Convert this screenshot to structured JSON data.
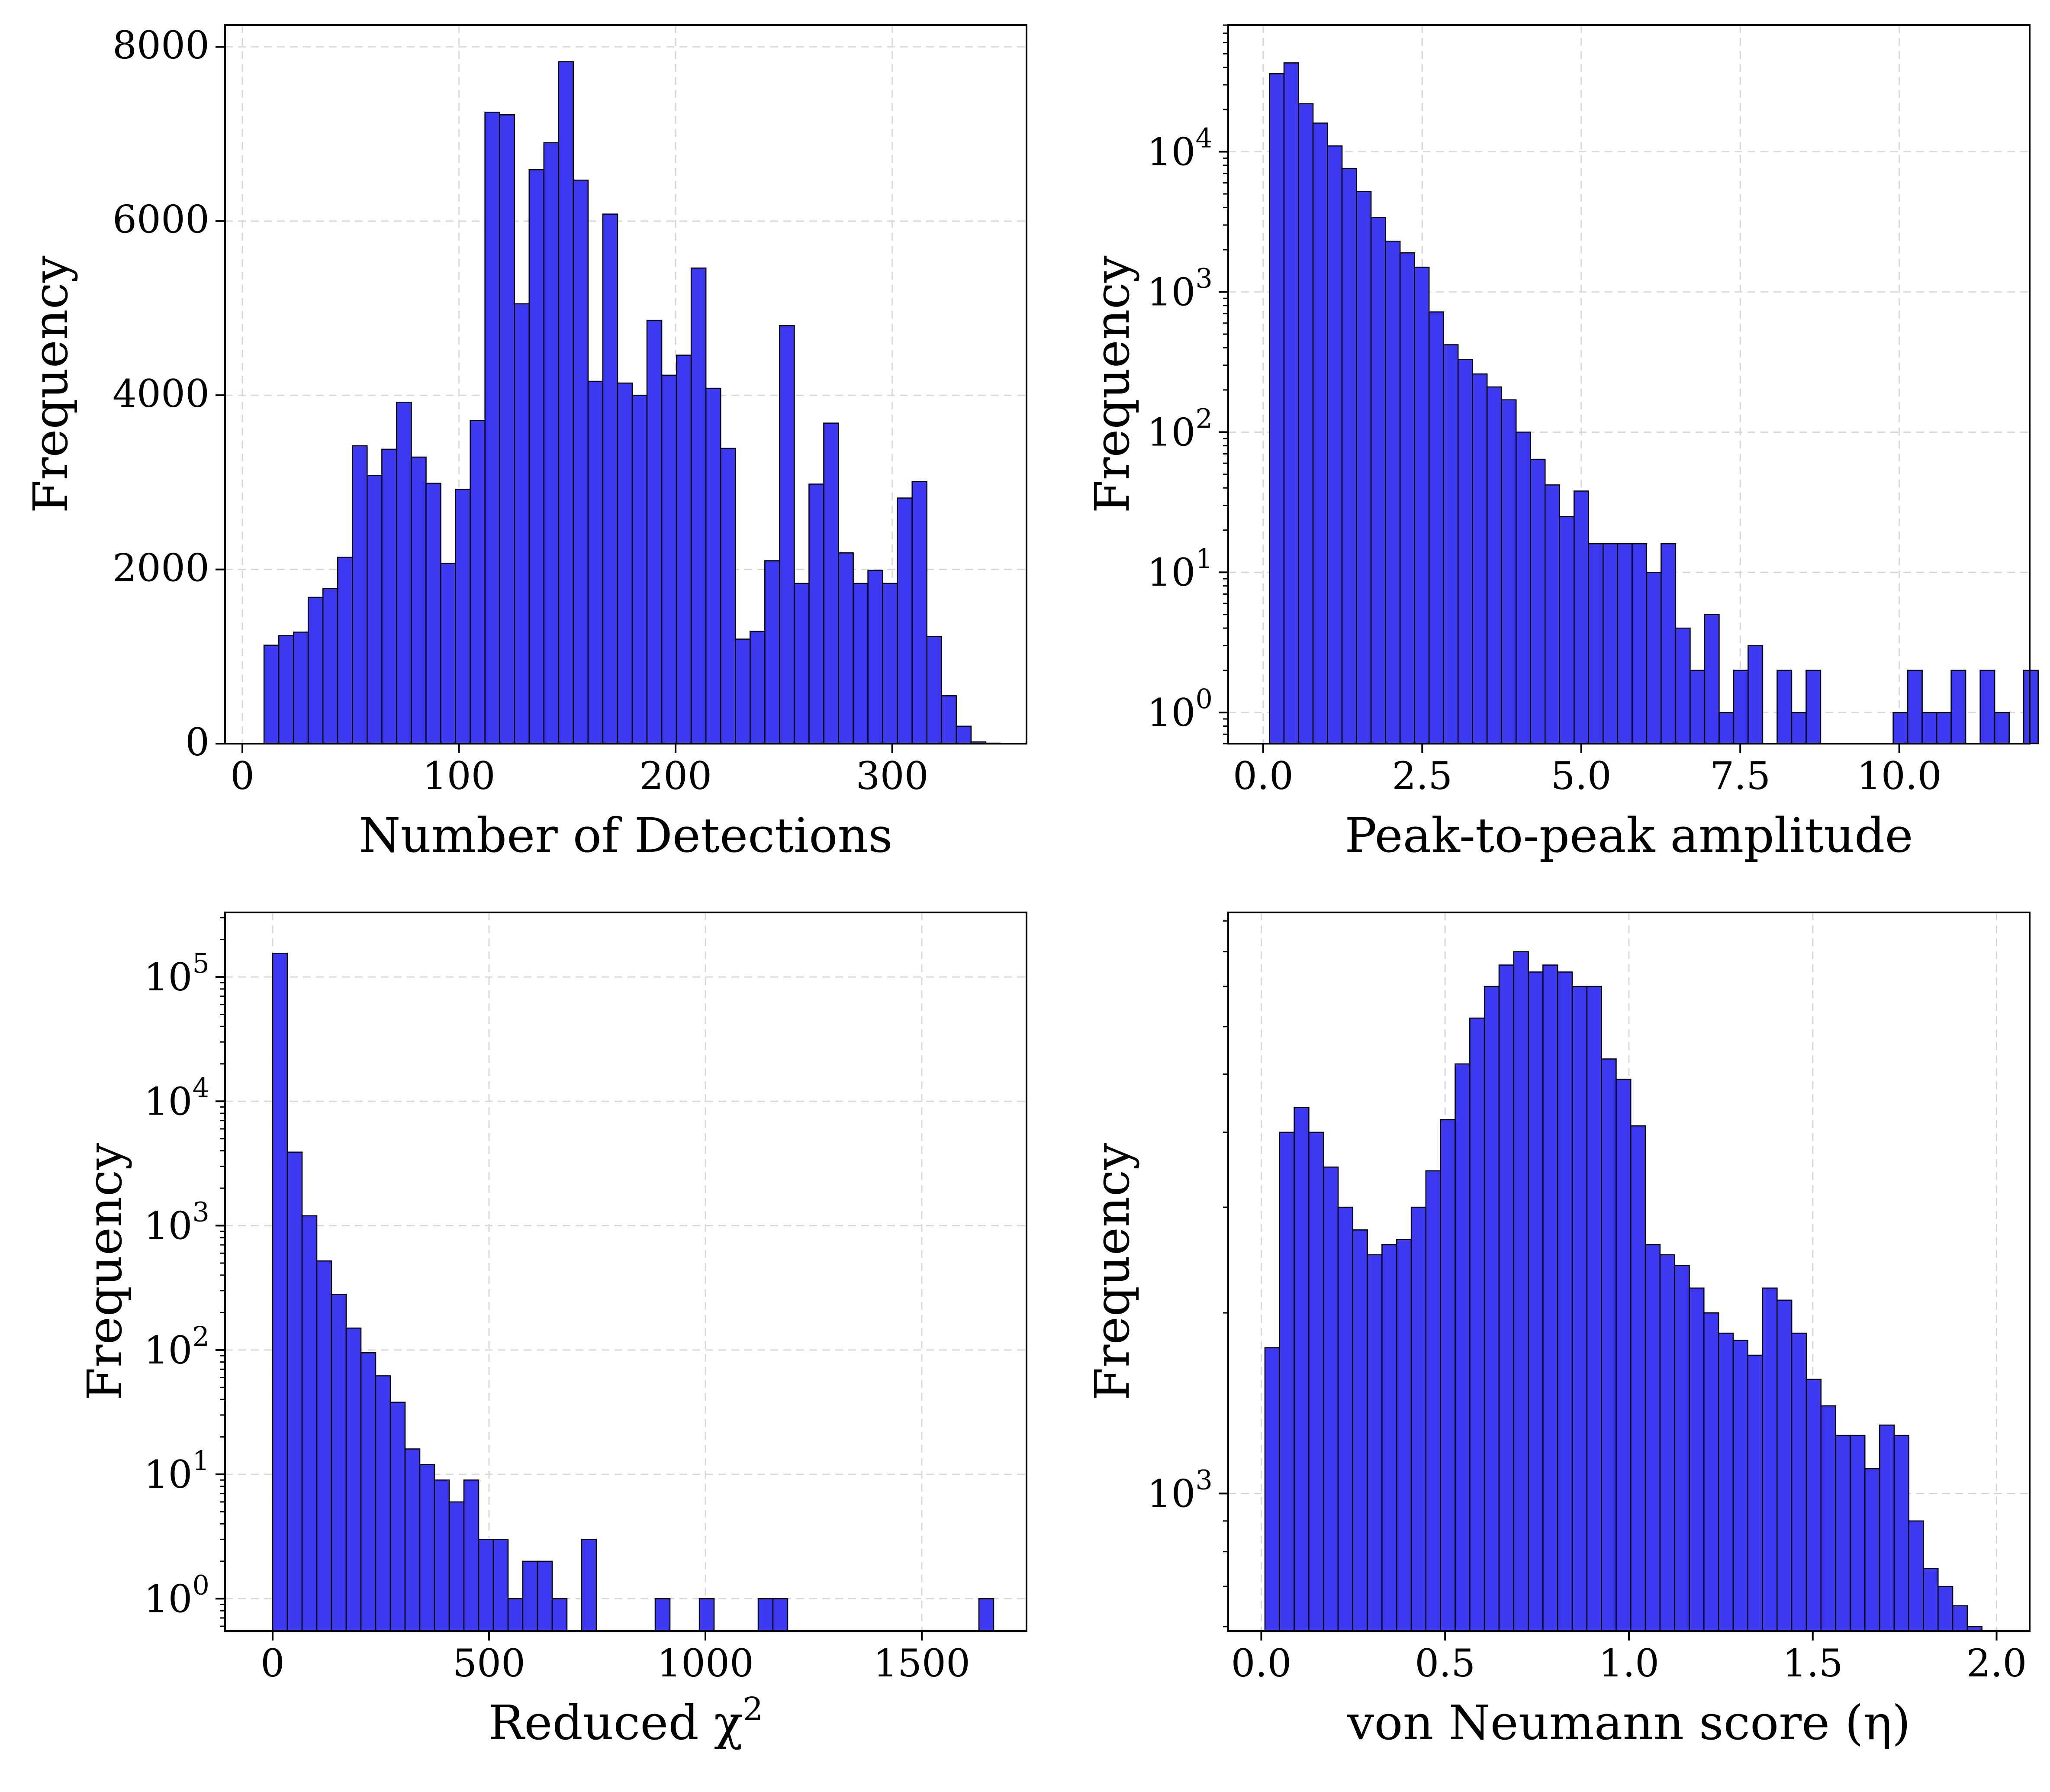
{
  "colors": {
    "bar": "#3c39f0",
    "edge": "#000000",
    "grid": "#d8d8d8"
  },
  "chart_data": [
    {
      "type": "bar",
      "scale": "linear",
      "xlabel": "Number of Detections",
      "ylabel": "Frequency",
      "xlim": [
        -8,
        362
      ],
      "ylim": [
        0,
        8250
      ],
      "bin_start": 10,
      "bin_width": 6.8,
      "values": [
        1130,
        1240,
        1280,
        1680,
        1780,
        2140,
        3420,
        3080,
        3380,
        3920,
        3290,
        2990,
        2070,
        2920,
        3710,
        7250,
        7220,
        5050,
        6590,
        6900,
        7830,
        6470,
        4160,
        6080,
        4140,
        4000,
        4860,
        4230,
        4460,
        5460,
        4080,
        3390,
        1200,
        1290,
        2100,
        4800,
        1840,
        2980,
        3680,
        2190,
        1840,
        1990,
        1840,
        2820,
        3010,
        1230,
        550,
        200,
        20,
        5
      ],
      "xticks": [
        0,
        100,
        200,
        300
      ],
      "xtick_labels": [
        "0",
        "100",
        "200",
        "300"
      ],
      "yticks": [
        0,
        2000,
        4000,
        6000,
        8000
      ],
      "ytick_labels": [
        "0",
        "2000",
        "4000",
        "6000",
        "8000"
      ]
    },
    {
      "type": "bar",
      "scale": "log",
      "xlabel": "Peak-to-peak amplitude",
      "ylabel": "Frequency",
      "xlim": [
        -0.55,
        12.05
      ],
      "ylim": [
        0.6,
        80000
      ],
      "bin_start": 0.1,
      "bin_width": 0.228,
      "values": [
        36000,
        43000,
        22000,
        16000,
        11000,
        7600,
        5200,
        3400,
        2300,
        1900,
        1500,
        720,
        420,
        330,
        260,
        210,
        170,
        100,
        64,
        42,
        25,
        38,
        16,
        16,
        16,
        16,
        10,
        16,
        4,
        2,
        5,
        1,
        2,
        3,
        0,
        2,
        1,
        2,
        0,
        0,
        0,
        0,
        0,
        1,
        2,
        1,
        1,
        2,
        0,
        2,
        1,
        0,
        2
      ],
      "xticks": [
        0,
        2.5,
        5,
        7.5,
        10
      ],
      "xtick_labels": [
        "0.0",
        "2.5",
        "5.0",
        "7.5",
        "10.0"
      ],
      "yticks": [
        1,
        10,
        100,
        1000,
        10000
      ],
      "ytick_labels": [
        "10^0",
        "10^1",
        "10^2",
        "10^3",
        "10^4"
      ]
    },
    {
      "type": "bar",
      "scale": "log",
      "xlabel": "Reduced χ^2",
      "ylabel": "Frequency",
      "xlim": [
        -110,
        1742
      ],
      "ylim": [
        0.55,
        330000
      ],
      "bin_start": 0,
      "bin_width": 34,
      "values": [
        155000,
        3900,
        1200,
        520,
        280,
        150,
        95,
        62,
        38,
        16,
        12,
        9,
        6,
        9,
        3,
        3,
        1,
        2,
        2,
        1,
        0,
        3,
        0,
        0,
        0,
        0,
        1,
        0,
        0,
        1,
        0,
        0,
        0,
        1,
        1,
        0,
        0,
        0,
        0,
        0,
        0,
        0,
        0,
        0,
        0,
        0,
        0,
        0,
        1
      ],
      "xticks": [
        0,
        500,
        1000,
        1500
      ],
      "xtick_labels": [
        "0",
        "500",
        "1000",
        "1500"
      ],
      "yticks": [
        1,
        10,
        100,
        1000,
        10000,
        100000
      ],
      "ytick_labels": [
        "10^0",
        "10^1",
        "10^2",
        "10^3",
        "10^4",
        "10^5"
      ]
    },
    {
      "type": "bar",
      "scale": "log",
      "xlabel": "von Neumann score (η)",
      "ylabel": "Frequency",
      "xlim": [
        -0.09,
        2.09
      ],
      "ylim": [
        590,
        9300
      ],
      "bin_start": 0.01,
      "bin_width": 0.0398,
      "values": [
        1750,
        4000,
        4400,
        4000,
        3500,
        3000,
        2750,
        2500,
        2600,
        2650,
        3000,
        3450,
        4200,
        5200,
        6200,
        7000,
        7600,
        8000,
        7400,
        7600,
        7400,
        7000,
        7000,
        5300,
        4900,
        4100,
        2600,
        2500,
        2400,
        2200,
        2000,
        1850,
        1800,
        1700,
        2200,
        2100,
        1850,
        1550,
        1400,
        1250,
        1250,
        1100,
        1300,
        1250,
        900,
        750,
        700,
        650,
        600,
        580
      ],
      "xticks": [
        0,
        0.5,
        1,
        1.5,
        2
      ],
      "xtick_labels": [
        "0.0",
        "0.5",
        "1.0",
        "1.5",
        "2.0"
      ],
      "yticks": [
        1000
      ],
      "ytick_labels": [
        "10^3"
      ]
    }
  ]
}
